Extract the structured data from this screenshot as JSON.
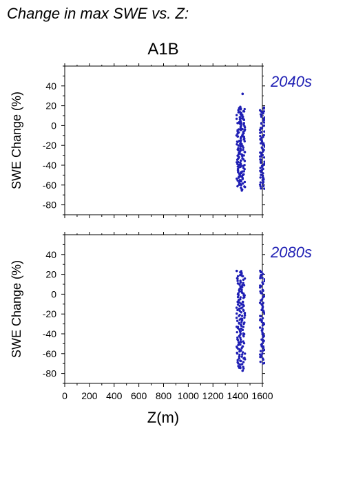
{
  "figure": {
    "title": "Change in max SWE vs. Z:",
    "scenario": "A1B",
    "xlabel": "Z(m)"
  },
  "colors": {
    "points": "#1f1fb4",
    "period_label": "#1f1fb4",
    "axes": "#000000"
  },
  "chart_data": [
    {
      "type": "scatter",
      "period": "2040s",
      "xlabel": "",
      "ylabel": "SWE Change (%)",
      "xlim": [
        0,
        1600
      ],
      "ylim": [
        -90,
        60
      ],
      "xticks": [],
      "yticks": [
        -80,
        -60,
        -40,
        -20,
        0,
        20,
        40
      ],
      "grid": false,
      "clusters": [
        {
          "x": 1410,
          "y_min": -62,
          "y_max": 18
        },
        {
          "x": 1440,
          "y_min": -66,
          "y_max": 19
        },
        {
          "x": 1600,
          "y_min": -64,
          "y_max": 18
        }
      ],
      "outliers": [
        {
          "x": 1440,
          "y": 32
        }
      ]
    },
    {
      "type": "scatter",
      "period": "2080s",
      "xlabel": "Z(m)",
      "ylabel": "SWE Change (%)",
      "xlim": [
        0,
        1600
      ],
      "ylim": [
        -90,
        60
      ],
      "xticks": [
        0,
        200,
        400,
        600,
        800,
        1000,
        1200,
        1400,
        1600
      ],
      "yticks": [
        -80,
        -60,
        -40,
        -20,
        0,
        20,
        40
      ],
      "grid": false,
      "clusters": [
        {
          "x": 1410,
          "y_min": -75,
          "y_max": 24
        },
        {
          "x": 1440,
          "y_min": -78,
          "y_max": 24
        },
        {
          "x": 1600,
          "y_min": -70,
          "y_max": 24
        }
      ],
      "outliers": []
    }
  ]
}
